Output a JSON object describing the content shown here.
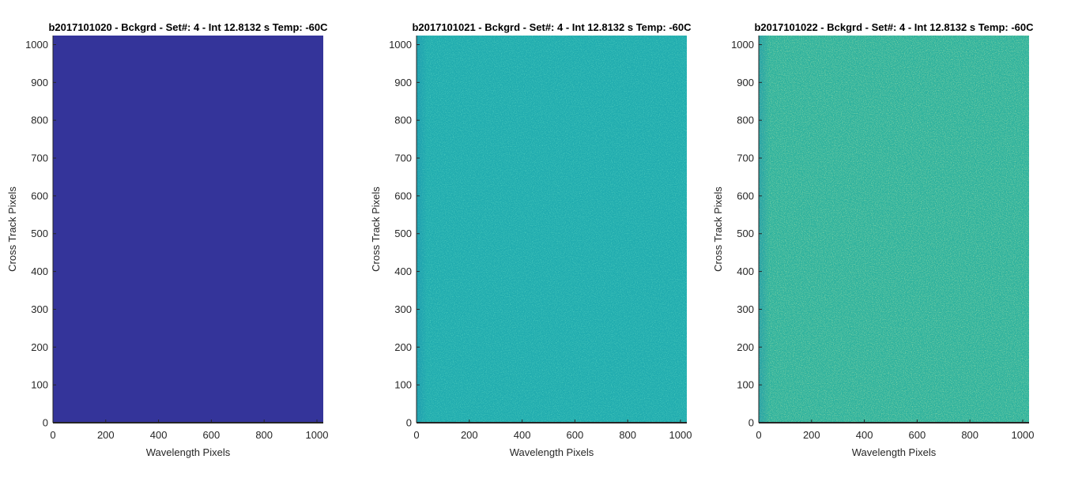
{
  "chart_data": [
    {
      "type": "heatmap",
      "title": "b2017101020 - Bckgrd - Set#: 4 - Int 12.8132 s Temp: -60C",
      "xlabel": "Wavelength Pixels",
      "ylabel": "Cross Track Pixels",
      "xlim": [
        0,
        1024
      ],
      "ylim": [
        0,
        1024
      ],
      "xticks": [
        0,
        200,
        400,
        600,
        800,
        1000
      ],
      "yticks": [
        0,
        100,
        200,
        300,
        400,
        500,
        600,
        700,
        800,
        900,
        1000
      ],
      "fill_color": "#34349a",
      "texture": "uniform",
      "grid": false
    },
    {
      "type": "heatmap",
      "title": "b2017101021 - Bckgrd - Set#: 4 - Int 12.8132 s Temp: -60C",
      "xlabel": "Wavelength Pixels",
      "ylabel": "Cross Track Pixels",
      "xlim": [
        0,
        1024
      ],
      "ylim": [
        0,
        1024
      ],
      "xticks": [
        0,
        200,
        400,
        600,
        800,
        1000
      ],
      "yticks": [
        0,
        100,
        200,
        300,
        400,
        500,
        600,
        700,
        800,
        900,
        1000
      ],
      "fill_color": "#21acaf",
      "texture": "noise",
      "grid": false
    },
    {
      "type": "heatmap",
      "title": "b2017101022 - Bckgrd - Set#: 4 - Int 12.8132 s Temp: -60C",
      "xlabel": "Wavelength Pixels",
      "ylabel": "Cross Track Pixels",
      "xlim": [
        0,
        1024
      ],
      "ylim": [
        0,
        1024
      ],
      "xticks": [
        0,
        200,
        400,
        600,
        800,
        1000
      ],
      "yticks": [
        0,
        100,
        200,
        300,
        400,
        500,
        600,
        700,
        800,
        900,
        1000
      ],
      "fill_color": "#2fb29e",
      "texture": "noise",
      "grid": false
    }
  ]
}
